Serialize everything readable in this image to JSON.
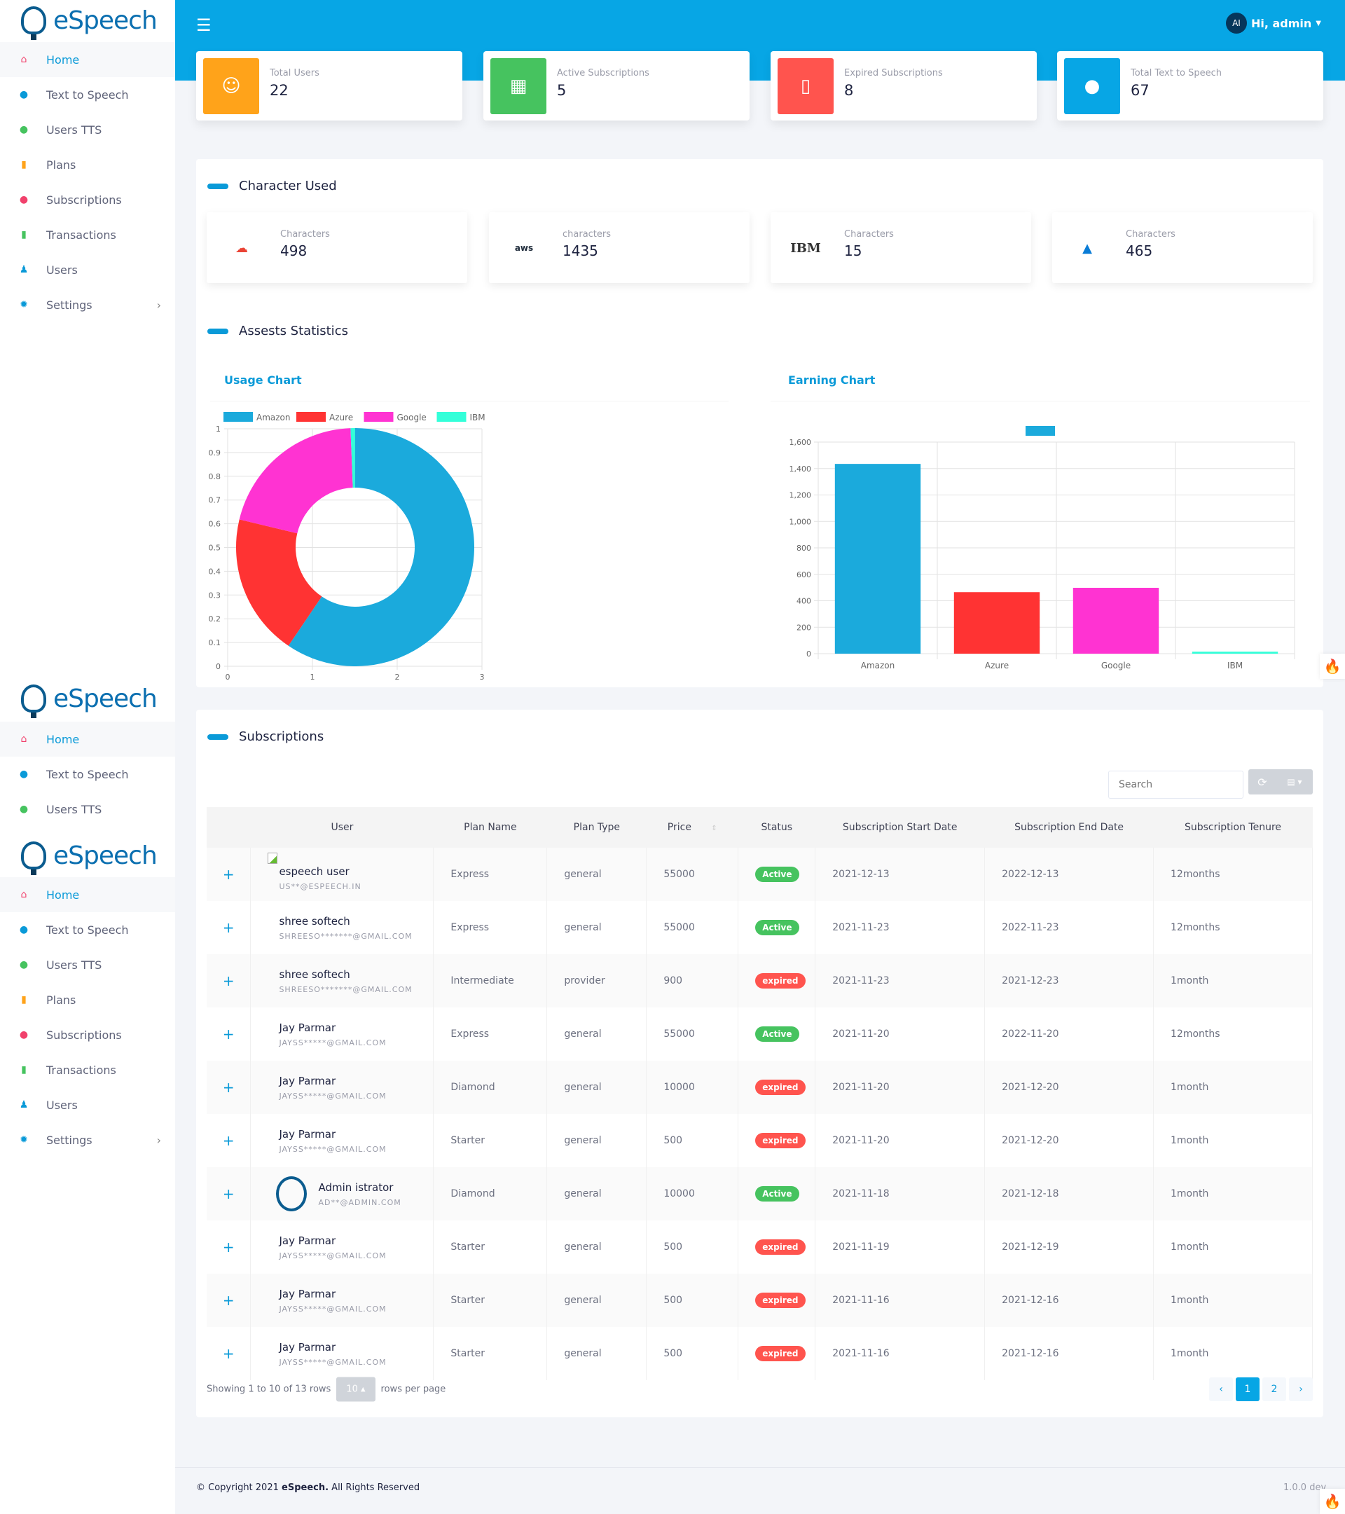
{
  "brand": {
    "name": "eSpeech"
  },
  "sidebar": {
    "items": [
      {
        "label": "Home",
        "icon": "home-icon",
        "color": "#f1416c"
      },
      {
        "label": "Text to Speech",
        "icon": "microphone-icon",
        "color": "#0a9ad8"
      },
      {
        "label": "Users TTS",
        "icon": "chat-icon",
        "color": "#46c35f"
      },
      {
        "label": "Plans",
        "icon": "book-icon",
        "color": "#ffa31a"
      },
      {
        "label": "Subscriptions",
        "icon": "fire-icon",
        "color": "#f1416c"
      },
      {
        "label": "Transactions",
        "icon": "file-invoice-icon",
        "color": "#46c35f"
      },
      {
        "label": "Users",
        "icon": "users-icon",
        "color": "#0a9ad8"
      },
      {
        "label": "Settings",
        "icon": "gear-icon",
        "color": "#0a9ad8"
      }
    ]
  },
  "header": {
    "avatar": "AI",
    "greeting": "Hi, admin"
  },
  "stats": [
    {
      "label": "Total Users",
      "value": "22",
      "color": "#ffa31a",
      "icon": "user-icon"
    },
    {
      "label": "Active Subscriptions",
      "value": "5",
      "color": "#46c35f",
      "icon": "table-icon"
    },
    {
      "label": "Expired Subscriptions",
      "value": "8",
      "color": "#ff544e",
      "icon": "file-icon"
    },
    {
      "label": "Total Text to Speech",
      "value": "67",
      "color": "#07a6e5",
      "icon": "circle-icon"
    }
  ],
  "character_used": {
    "title": "Character Used",
    "cards": [
      {
        "provider": "Google",
        "label": "Characters",
        "value": "498"
      },
      {
        "provider": "aws",
        "label": "characters",
        "value": "1435"
      },
      {
        "provider": "IBM",
        "label": "Characters",
        "value": "15"
      },
      {
        "provider": "Azure",
        "label": "Characters",
        "value": "465"
      }
    ]
  },
  "assets": {
    "title": "Assests Statistics",
    "usage_title": "Usage Chart",
    "earning_title": "Earning Chart"
  },
  "chart_data": [
    {
      "type": "pie",
      "title": "Usage Chart",
      "categories": [
        "Amazon",
        "Azure",
        "Google",
        "IBM"
      ],
      "values": [
        1435,
        465,
        498,
        15
      ],
      "colors": [
        "#1baadc",
        "#ff3333",
        "#ff33d2",
        "#33ffd9"
      ],
      "x_ticks": [
        "0",
        "1",
        "2",
        "3"
      ],
      "y_ticks": [
        "0",
        "0.1",
        "0.2",
        "0.3",
        "0.4",
        "0.5",
        "0.6",
        "0.7",
        "0.8",
        "0.9",
        "1"
      ],
      "legend": "top"
    },
    {
      "type": "bar",
      "title": "Earning Chart",
      "categories": [
        "Amazon",
        "Azure",
        "Google",
        "IBM"
      ],
      "values": [
        1435,
        465,
        498,
        15
      ],
      "colors": [
        "#1baadc",
        "#ff3333",
        "#ff33d2",
        "#33ffd9"
      ],
      "ylim": [
        0,
        1600
      ],
      "y_ticks": [
        "0",
        "200",
        "400",
        "600",
        "800",
        "1,000",
        "1,200",
        "1,400",
        "1,600"
      ],
      "legend": "top"
    }
  ],
  "subscriptions": {
    "title": "Subscriptions",
    "search_placeholder": "Search",
    "columns": [
      "User",
      "Plan Name",
      "Plan Type",
      "Price",
      "Status",
      "Subscription Start Date",
      "Subscription End Date",
      "Subscription Tenure"
    ],
    "rows": [
      {
        "name": "espeech user",
        "email": "US**@ESPEECH.IN",
        "plan": "Express",
        "type": "general",
        "price": "55000",
        "status": "Active",
        "start": "2021-12-13",
        "end": "2022-12-13",
        "tenure": "12months",
        "avatar": "broken"
      },
      {
        "name": "shree softech",
        "email": "SHREESO*******@GMAIL.COM",
        "plan": "Express",
        "type": "general",
        "price": "55000",
        "status": "Active",
        "start": "2021-11-23",
        "end": "2022-11-23",
        "tenure": "12months"
      },
      {
        "name": "shree softech",
        "email": "SHREESO*******@GMAIL.COM",
        "plan": "Intermediate",
        "type": "provider",
        "price": "900",
        "status": "expired",
        "start": "2021-11-23",
        "end": "2021-12-23",
        "tenure": "1month"
      },
      {
        "name": "Jay Parmar",
        "email": "JAYSS*****@GMAIL.COM",
        "plan": "Express",
        "type": "general",
        "price": "55000",
        "status": "Active",
        "start": "2021-11-20",
        "end": "2022-11-20",
        "tenure": "12months"
      },
      {
        "name": "Jay Parmar",
        "email": "JAYSS*****@GMAIL.COM",
        "plan": "Diamond",
        "type": "general",
        "price": "10000",
        "status": "expired",
        "start": "2021-11-20",
        "end": "2021-12-20",
        "tenure": "1month"
      },
      {
        "name": "Jay Parmar",
        "email": "JAYSS*****@GMAIL.COM",
        "plan": "Starter",
        "type": "general",
        "price": "500",
        "status": "expired",
        "start": "2021-11-20",
        "end": "2021-12-20",
        "tenure": "1month"
      },
      {
        "name": "Admin istrator",
        "email": "AD**@ADMIN.COM",
        "plan": "Diamond",
        "type": "general",
        "price": "10000",
        "status": "Active",
        "start": "2021-11-18",
        "end": "2021-12-18",
        "tenure": "1month",
        "avatar": "logo"
      },
      {
        "name": "Jay Parmar",
        "email": "JAYSS*****@GMAIL.COM",
        "plan": "Starter",
        "type": "general",
        "price": "500",
        "status": "expired",
        "start": "2021-11-19",
        "end": "2021-12-19",
        "tenure": "1month"
      },
      {
        "name": "Jay Parmar",
        "email": "JAYSS*****@GMAIL.COM",
        "plan": "Starter",
        "type": "general",
        "price": "500",
        "status": "expired",
        "start": "2021-11-16",
        "end": "2021-12-16",
        "tenure": "1month"
      },
      {
        "name": "Jay Parmar",
        "email": "JAYSS*****@GMAIL.COM",
        "plan": "Starter",
        "type": "general",
        "price": "500",
        "status": "expired",
        "start": "2021-11-16",
        "end": "2021-12-16",
        "tenure": "1month"
      }
    ],
    "showing": "Showing 1 to 10 of 13 rows",
    "page_size": "10",
    "rows_per_page": "rows per page",
    "pages": [
      "‹",
      "1",
      "2",
      "›"
    ],
    "current_page": "1"
  },
  "footer": {
    "copyright_pre": "© Copyright 2021 ",
    "copyright_brand": "eSpeech.",
    "copyright_post": " All Rights Reserved",
    "version": "1.0.0 dev"
  },
  "colors": {
    "accent": "#07a6e5",
    "active": "#46c35f",
    "expired": "#ff544e"
  }
}
